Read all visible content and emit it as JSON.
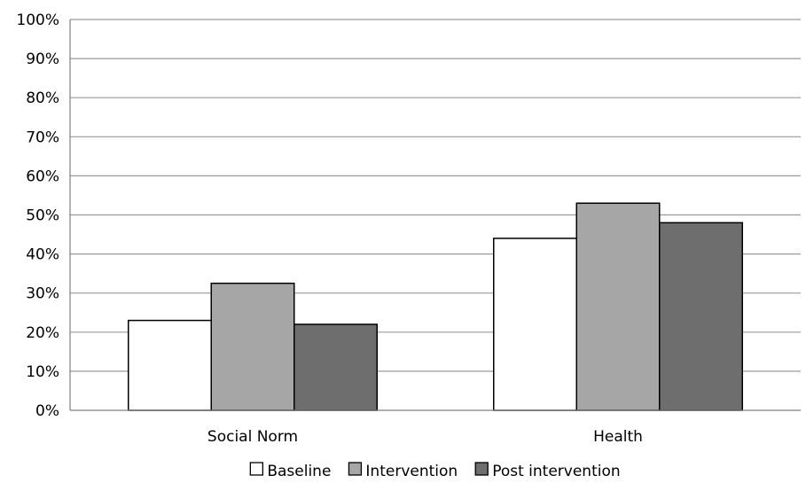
{
  "chart_data": {
    "type": "bar",
    "categories": [
      "Social Norm",
      "Health"
    ],
    "series": [
      {
        "name": "Baseline",
        "values": [
          23,
          44
        ],
        "color": "#ffffff"
      },
      {
        "name": "Intervention",
        "values": [
          32.5,
          53
        ],
        "color": "#a6a6a6"
      },
      {
        "name": "Post intervention",
        "values": [
          22,
          48
        ],
        "color": "#6e6e6e"
      }
    ],
    "y_ticks": [
      "0%",
      "10%",
      "20%",
      "30%",
      "40%",
      "50%",
      "60%",
      "70%",
      "80%",
      "90%",
      "100%"
    ],
    "ylim": [
      0,
      100
    ],
    "grid": true,
    "legend_position": "bottom",
    "title": "",
    "xlabel": "",
    "ylabel": ""
  }
}
